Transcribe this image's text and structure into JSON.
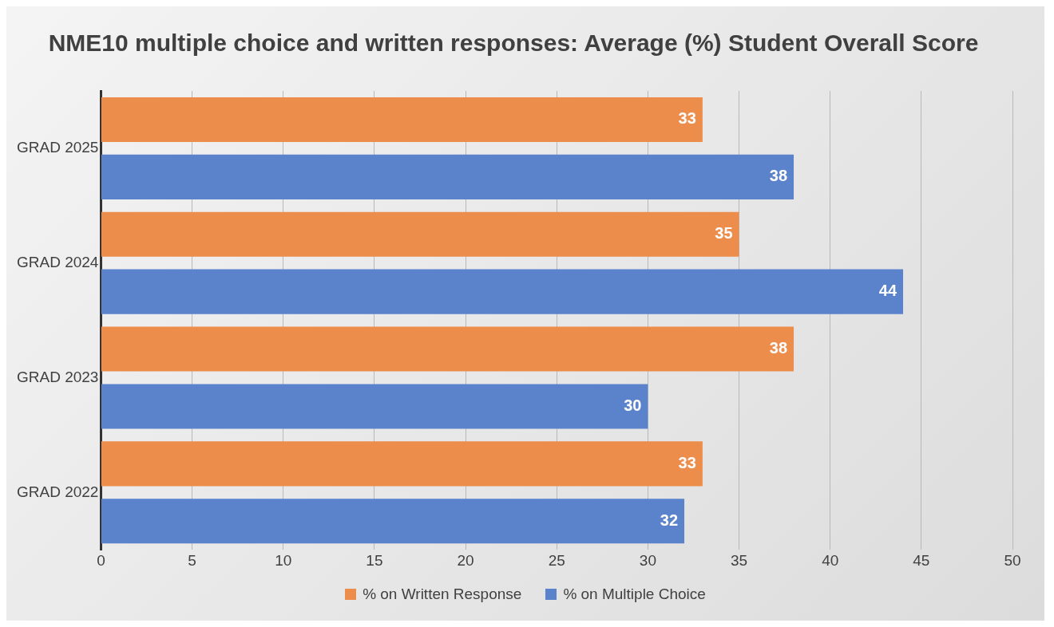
{
  "chart_data": {
    "type": "bar",
    "orientation": "horizontal",
    "title": "NME10 multiple choice and written responses: Average (%) Student Overall Score",
    "categories": [
      "GRAD 2025",
      "GRAD 2024",
      "GRAD 2023",
      "GRAD 2022"
    ],
    "series": [
      {
        "name": "% on Written Response",
        "color": "#ed8d4b",
        "values": [
          33,
          35,
          38,
          33
        ]
      },
      {
        "name": "% on Multiple Choice",
        "color": "#5b83cc",
        "values": [
          38,
          44,
          30,
          32
        ]
      }
    ],
    "xlim": [
      0,
      50
    ],
    "xticks": [
      0,
      5,
      10,
      15,
      20,
      25,
      30,
      35,
      40,
      45,
      50
    ],
    "grid": "x",
    "legend": "bottom",
    "data_labels": true
  }
}
